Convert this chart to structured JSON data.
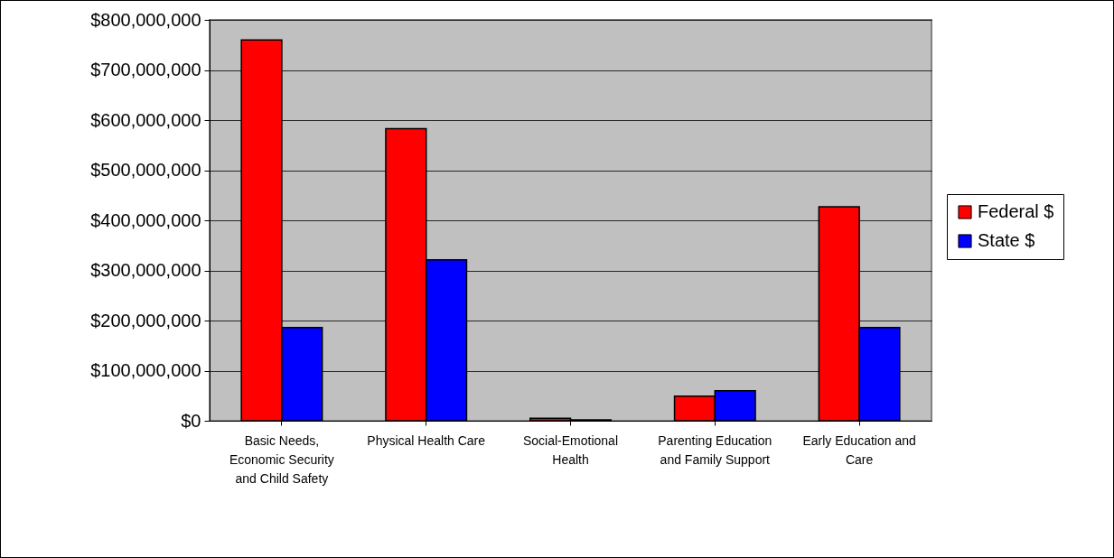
{
  "chart_data": {
    "type": "bar",
    "categories": [
      "Basic Needs, Economic Security and Child Safety",
      "Physical Health Care",
      "Social-Emotional Health",
      "Parenting Education and Family Support",
      "Early Education and Care"
    ],
    "series": [
      {
        "name": "Federal $",
        "color": "#ff0000",
        "values": [
          760000000,
          583000000,
          5000000,
          49000000,
          427000000
        ]
      },
      {
        "name": "State $",
        "color": "#0000ff",
        "values": [
          186000000,
          321000000,
          2000000,
          60000000,
          186000000
        ]
      }
    ],
    "ylim": [
      0,
      800000000
    ],
    "yticks": [
      {
        "value": 0,
        "label": "$0"
      },
      {
        "value": 100000000,
        "label": "$100,000,000"
      },
      {
        "value": 200000000,
        "label": "$200,000,000"
      },
      {
        "value": 300000000,
        "label": "$300,000,000"
      },
      {
        "value": 400000000,
        "label": "$400,000,000"
      },
      {
        "value": 500000000,
        "label": "$500,000,000"
      },
      {
        "value": 600000000,
        "label": "$600,000,000"
      },
      {
        "value": 700000000,
        "label": "$700,000,000"
      },
      {
        "value": 800000000,
        "label": "$800,000,000"
      }
    ],
    "grid": "y",
    "legend": "right"
  }
}
